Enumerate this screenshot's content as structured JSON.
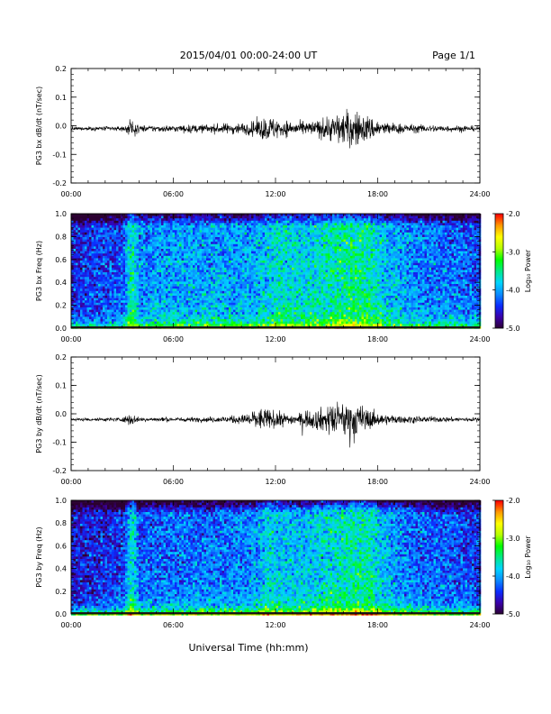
{
  "header": {
    "title": "2015/04/01  00:00-24:00 UT",
    "page": "Page 1/1"
  },
  "footer": {
    "xlabel": "Universal Time (hh:mm)"
  },
  "colorscale": {
    "stops": [
      "#2b0030",
      "#3a00a8",
      "#0a2cff",
      "#0a8cff",
      "#00d4ff",
      "#00e98a",
      "#00ff00",
      "#b6ff00",
      "#ffff00",
      "#ff9a00",
      "#ff0000"
    ]
  },
  "chart_data": [
    {
      "type": "line",
      "ylabel": "PG3 bx dB/dt (nT/sec)",
      "xlim": [
        0,
        24
      ],
      "ylim": [
        -0.2,
        0.2
      ],
      "xticks": [
        "00:00",
        "06:00",
        "12:00",
        "18:00",
        "24:00"
      ],
      "yticks": [
        "0.2",
        "0.1",
        "0.0",
        "-0.1",
        "-0.2"
      ],
      "ytick_values": [
        0.2,
        0.1,
        0.0,
        -0.1,
        -0.2
      ],
      "baseline": -0.01,
      "amplitude_profile": {
        "hour": [
          0,
          3.0,
          3.5,
          4.0,
          6.0,
          8.0,
          10.5,
          11.5,
          12.5,
          13.5,
          14.5,
          15.5,
          16.5,
          17.5,
          18.5,
          20,
          22,
          24
        ],
        "amp": [
          0.004,
          0.006,
          0.02,
          0.008,
          0.008,
          0.01,
          0.015,
          0.03,
          0.02,
          0.015,
          0.02,
          0.035,
          0.045,
          0.03,
          0.015,
          0.01,
          0.008,
          0.006
        ]
      }
    },
    {
      "type": "heatmap",
      "ylabel": "PG3 bx Freq (Hz)",
      "xlim": [
        0,
        24
      ],
      "ylim": [
        0.0,
        1.0
      ],
      "xticks": [
        "00:00",
        "06:00",
        "12:00",
        "18:00",
        "24:00"
      ],
      "yticks": [
        "1.0",
        "0.8",
        "0.6",
        "0.4",
        "0.2",
        "0.0"
      ],
      "ytick_values": [
        1.0,
        0.8,
        0.6,
        0.4,
        0.2,
        0.0
      ],
      "colorbar": {
        "label": "Log₁₀ Power",
        "ticks": [
          "-2.0",
          "-3.0",
          "-4.0",
          "-5.0"
        ],
        "range": [
          -5.0,
          -2.0
        ]
      },
      "intensity_profile": {
        "hour": [
          0,
          3.0,
          3.5,
          4.0,
          6.0,
          8.0,
          10.5,
          11.5,
          12.5,
          13.5,
          14.5,
          15.5,
          16.5,
          17.5,
          18.5,
          20,
          22,
          24
        ],
        "level": [
          -4.5,
          -4.3,
          -3.5,
          -4.1,
          -4.0,
          -4.0,
          -4.0,
          -3.8,
          -3.7,
          -3.8,
          -3.7,
          -3.6,
          -3.5,
          -3.6,
          -3.9,
          -4.1,
          -4.2,
          -4.3
        ]
      }
    },
    {
      "type": "line",
      "ylabel": "PG3 by dB/dt (nT/sec)",
      "xlim": [
        0,
        24
      ],
      "ylim": [
        -0.2,
        0.2
      ],
      "xticks": [
        "00:00",
        "06:00",
        "12:00",
        "18:00",
        "24:00"
      ],
      "yticks": [
        "0.2",
        "0.1",
        "0.0",
        "-0.1",
        "-0.2"
      ],
      "ytick_values": [
        0.2,
        0.1,
        0.0,
        -0.1,
        -0.2
      ],
      "baseline": -0.02,
      "amplitude_profile": {
        "hour": [
          0,
          3.0,
          3.5,
          4.0,
          6.0,
          8.0,
          10.0,
          11.0,
          12.0,
          13.0,
          14.0,
          15.0,
          16.0,
          17.0,
          18.0,
          19.0,
          20,
          22,
          24
        ],
        "amp": [
          0.003,
          0.005,
          0.015,
          0.005,
          0.005,
          0.006,
          0.01,
          0.028,
          0.02,
          0.012,
          0.02,
          0.032,
          0.045,
          0.035,
          0.015,
          0.01,
          0.008,
          0.006,
          0.005
        ]
      }
    },
    {
      "type": "heatmap",
      "ylabel": "PG3 by Freq (Hz)",
      "xlim": [
        0,
        24
      ],
      "ylim": [
        0.0,
        1.0
      ],
      "xticks": [
        "00:00",
        "06:00",
        "12:00",
        "18:00",
        "24:00"
      ],
      "yticks": [
        "1.0",
        "0.8",
        "0.6",
        "0.4",
        "0.2",
        "0.0"
      ],
      "ytick_values": [
        1.0,
        0.8,
        0.6,
        0.4,
        0.2,
        0.0
      ],
      "colorbar": {
        "label": "Log₁₀ Power",
        "ticks": [
          "-2.0",
          "-3.0",
          "-4.0",
          "-5.0"
        ],
        "range": [
          -5.0,
          -2.0
        ]
      },
      "intensity_profile": {
        "hour": [
          0,
          3.0,
          3.5,
          4.0,
          6.0,
          8.0,
          10.5,
          11.5,
          12.5,
          13.5,
          14.5,
          15.5,
          16.5,
          17.5,
          18.5,
          20,
          22,
          24
        ],
        "level": [
          -4.6,
          -4.4,
          -3.6,
          -4.3,
          -4.2,
          -4.2,
          -4.1,
          -3.8,
          -3.9,
          -3.9,
          -3.8,
          -3.7,
          -3.6,
          -3.6,
          -4.0,
          -4.2,
          -4.3,
          -4.4
        ]
      }
    }
  ]
}
